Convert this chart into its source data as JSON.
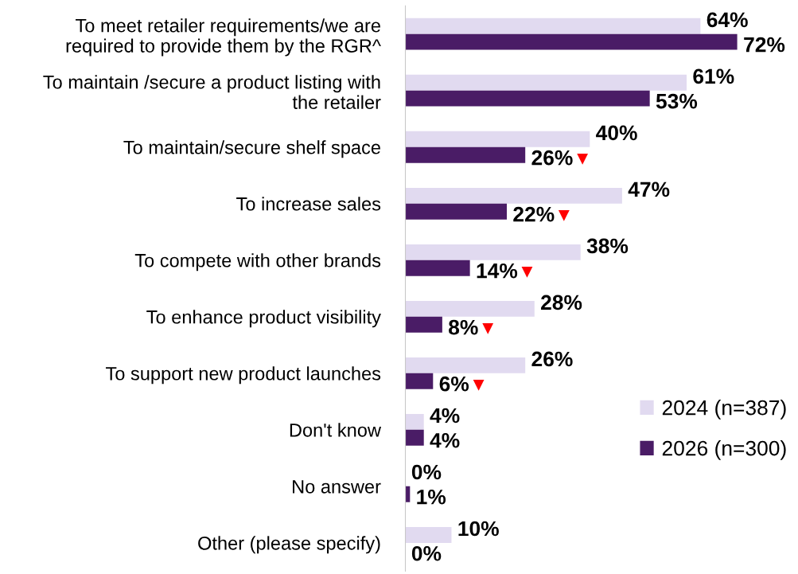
{
  "chart_data": {
    "type": "bar",
    "orientation": "horizontal",
    "categories": [
      "To meet retailer requirements/we are\nrequired to provide them by the RGR^",
      "To maintain /secure a product listing with\nthe retailer",
      "To maintain/secure shelf space",
      "To increase sales",
      "To compete with other brands",
      "To enhance product visibility",
      "To support new product launches",
      "Don't know",
      "No answer",
      "Other (please specify)"
    ],
    "series": [
      {
        "name": "2024 (n=387)",
        "color": "#e1daf0",
        "values": [
          64,
          61,
          40,
          47,
          38,
          28,
          26,
          4,
          0,
          10
        ],
        "value_labels": [
          "64%",
          "61%",
          "40%",
          "47%",
          "38%",
          "28%",
          "26%",
          "4%",
          "0%",
          "10%"
        ]
      },
      {
        "name": "2026 (n=300)",
        "color": "#4a1c66",
        "values": [
          72,
          53,
          26,
          22,
          14,
          8,
          6,
          4,
          1,
          0
        ],
        "value_labels": [
          "72%",
          "53%",
          "26%",
          "22%",
          "14%",
          "8%",
          "6%",
          "4%",
          "1%",
          "0%"
        ]
      }
    ],
    "tick_labels": "y",
    "legend": "right",
    "annotations": [
      {
        "text": "▼",
        "x": 26,
        "y": "To maintain/secure shelf space"
      },
      {
        "text": "▼",
        "x": 22,
        "y": "To increase sales"
      },
      {
        "text": "▼",
        "x": 14,
        "y": "To compete with other brands"
      },
      {
        "text": "▼",
        "x": 8,
        "y": "To enhance product visibility"
      },
      {
        "text": "▼",
        "x": 6,
        "y": "To support new product launches"
      }
    ]
  }
}
